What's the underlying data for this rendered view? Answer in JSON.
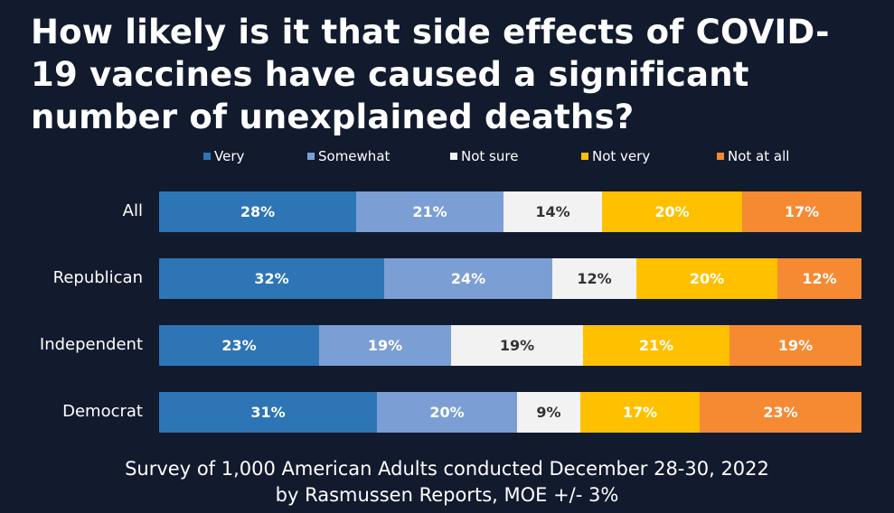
{
  "title": "How likely is it that side effects of COVID-19 vaccines have caused a significant number of unexplained deaths?",
  "chart_data": {
    "type": "bar",
    "orientation": "horizontal",
    "stacked": true,
    "title": "How likely is it that side effects of COVID-19 vaccines have caused a significant number of unexplained deaths?",
    "categories": [
      "All",
      "Republican",
      "Independent",
      "Democrat"
    ],
    "series": [
      {
        "name": "Very",
        "color": "#2e75b6",
        "values": [
          28,
          32,
          23,
          31
        ]
      },
      {
        "name": "Somewhat",
        "color": "#7b9fd4",
        "values": [
          21,
          24,
          19,
          20
        ]
      },
      {
        "name": "Not sure",
        "color": "#f2f2f2",
        "values": [
          14,
          12,
          19,
          9
        ]
      },
      {
        "name": "Not very",
        "color": "#ffc000",
        "values": [
          20,
          20,
          21,
          17
        ]
      },
      {
        "name": "Not at all",
        "color": "#f58a33",
        "values": [
          17,
          12,
          19,
          23
        ]
      }
    ],
    "value_suffix": "%",
    "legend_position": "top",
    "xlabel": "",
    "ylabel": ""
  },
  "footer": {
    "line1": "Survey of 1,000 American Adults conducted December 28-30, 2022",
    "line2": "by Rasmussen Reports, MOE +/- 3%"
  }
}
